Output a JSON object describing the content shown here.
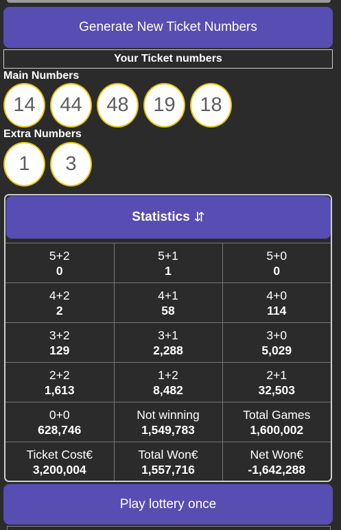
{
  "generate_button": "Generate New Ticket Numbers",
  "ticket_header": "Your Ticket numbers",
  "main_label": "Main Numbers",
  "main_numbers": [
    "14",
    "44",
    "48",
    "19",
    "18"
  ],
  "extra_label": "Extra Numbers",
  "extra_numbers": [
    "1",
    "3"
  ],
  "statistics": {
    "title": "Statistics",
    "sort_icon": "sort-arrows-icon",
    "rows": [
      [
        {
          "label": "5+2",
          "value": "0"
        },
        {
          "label": "5+1",
          "value": "1"
        },
        {
          "label": "5+0",
          "value": "0"
        }
      ],
      [
        {
          "label": "4+2",
          "value": "2"
        },
        {
          "label": "4+1",
          "value": "58"
        },
        {
          "label": "4+0",
          "value": "114"
        }
      ],
      [
        {
          "label": "3+2",
          "value": "129"
        },
        {
          "label": "3+1",
          "value": "2,288"
        },
        {
          "label": "3+0",
          "value": "5,029"
        }
      ],
      [
        {
          "label": "2+2",
          "value": "1,613"
        },
        {
          "label": "1+2",
          "value": "8,482"
        },
        {
          "label": "2+1",
          "value": "32,503"
        }
      ],
      [
        {
          "label": "0+0",
          "value": "628,746"
        },
        {
          "label": "Not winning",
          "value": "1,549,783"
        },
        {
          "label": "Total Games",
          "value": "1,600,002"
        }
      ],
      [
        {
          "label": "Ticket Cost€",
          "value": "3,200,004"
        },
        {
          "label": "Total Won€",
          "value": "1,557,716"
        },
        {
          "label": "Net Won€",
          "value": "-1,642,288"
        }
      ]
    ]
  },
  "play_button": "Play lottery once",
  "colors": {
    "accent": "#584db3",
    "ball_border": "#e9c40e",
    "background": "#2b2b2b"
  }
}
